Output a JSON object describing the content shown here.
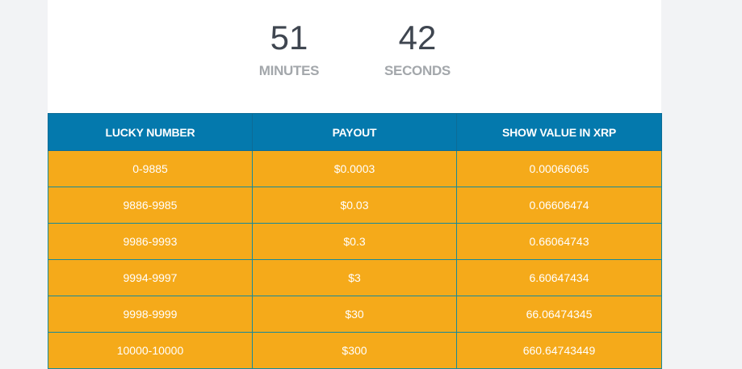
{
  "countdown": {
    "minutes_value": "51",
    "minutes_label": "MINUTES",
    "seconds_value": "42",
    "seconds_label": "SECONDS"
  },
  "payout_table": {
    "headers": [
      "LUCKY NUMBER",
      "PAYOUT",
      "SHOW VALUE IN XRP"
    ],
    "rows": [
      [
        "0-9885",
        "$0.0003",
        "0.00066065"
      ],
      [
        "9886-9985",
        "$0.03",
        "0.06606474"
      ],
      [
        "9986-9993",
        "$0.3",
        "0.66064743"
      ],
      [
        "9994-9997",
        "$3",
        "6.60647434"
      ],
      [
        "9998-9999",
        "$30",
        "66.06474345"
      ],
      [
        "10000-10000",
        "$300",
        "660.64743449"
      ]
    ]
  },
  "colors": {
    "header_bg": "#0479ad",
    "row_bg": "#f5aa1a",
    "text_dark": "#3f4650",
    "text_muted": "#a3a7ab"
  }
}
